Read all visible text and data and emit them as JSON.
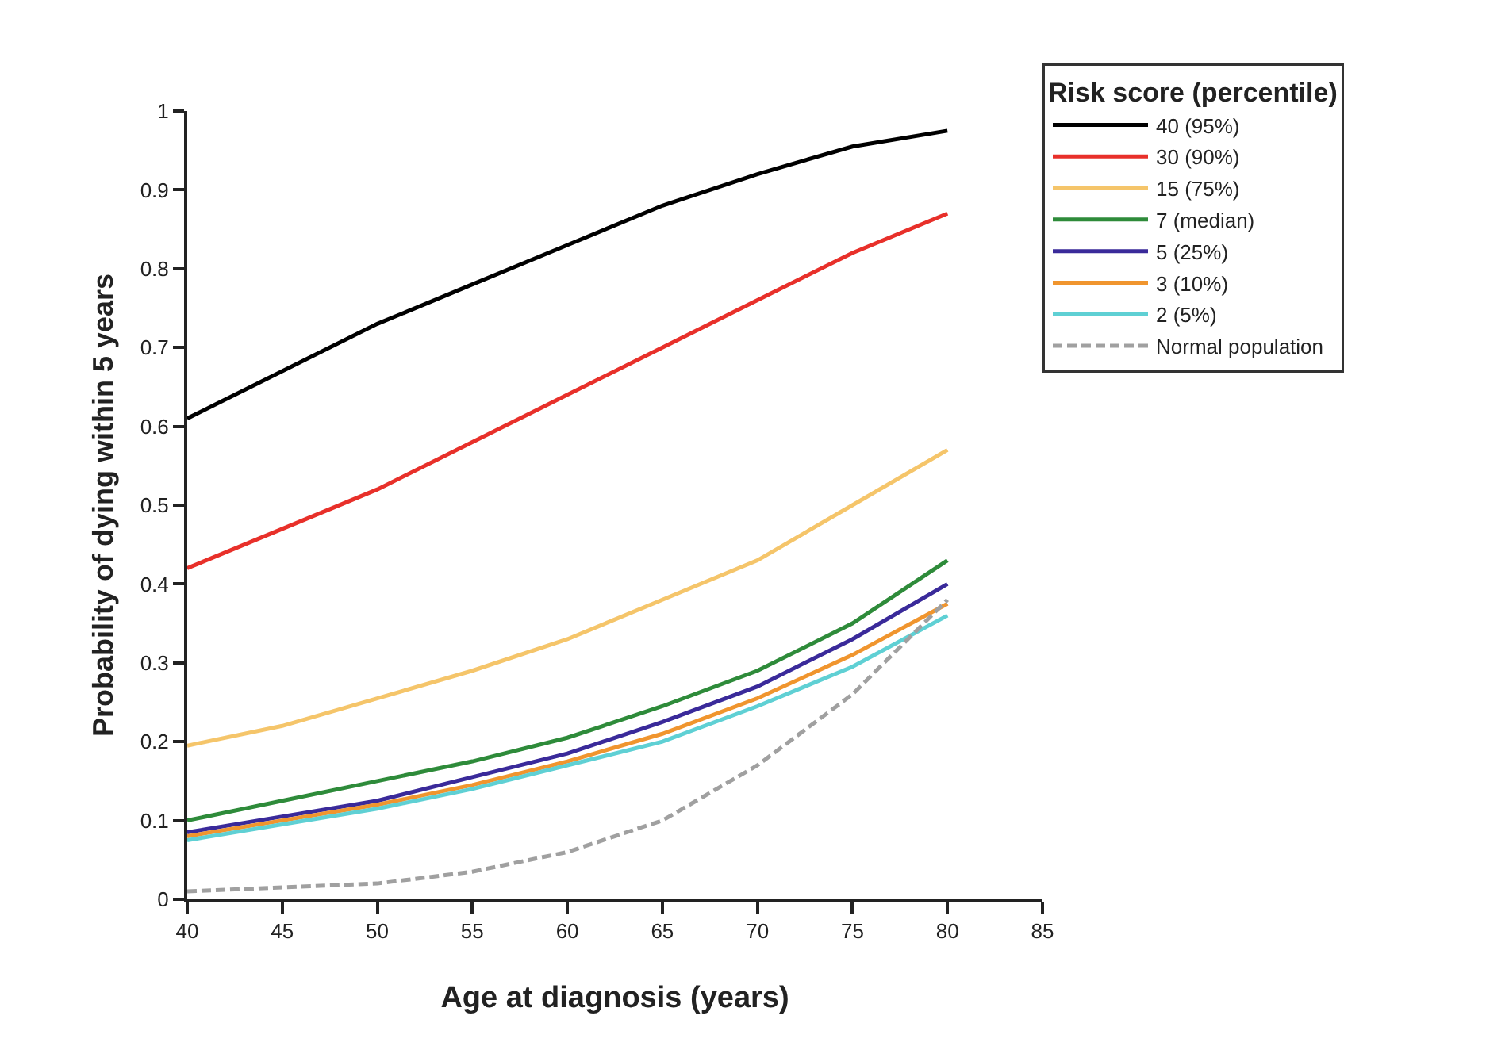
{
  "chart_data": {
    "type": "line",
    "xlabel": "Age at diagnosis (years)",
    "ylabel": "Probability of dying within 5 years",
    "legend_title": "Risk score (percentile)",
    "legend": "top right",
    "grid": false,
    "marker": "none",
    "line_style": "solid",
    "x": [
      40,
      45,
      50,
      55,
      60,
      65,
      70,
      75,
      80
    ],
    "xlim": [
      40,
      85
    ],
    "xticks": [
      40,
      45,
      50,
      55,
      60,
      65,
      70,
      75,
      80,
      85
    ],
    "ylim": [
      0,
      1
    ],
    "yticks": [
      0,
      0.1,
      0.2,
      0.3,
      0.4,
      0.5,
      0.6,
      0.7,
      0.8,
      0.9,
      1
    ],
    "series": [
      {
        "name": "40 (95%)",
        "color": "#000000",
        "values": [
          0.61,
          0.67,
          0.73,
          0.78,
          0.83,
          0.88,
          0.92,
          0.955,
          0.975
        ]
      },
      {
        "name": "30 (90%)",
        "color": "#e8302a",
        "values": [
          0.42,
          0.47,
          0.52,
          0.58,
          0.64,
          0.7,
          0.76,
          0.82,
          0.87
        ]
      },
      {
        "name": "15 (75%)",
        "color": "#f5c56a",
        "values": [
          0.195,
          0.22,
          0.255,
          0.29,
          0.33,
          0.38,
          0.43,
          0.5,
          0.57
        ]
      },
      {
        "name": "7 (median)",
        "color": "#2e8b3a",
        "values": [
          0.1,
          0.125,
          0.15,
          0.175,
          0.205,
          0.245,
          0.29,
          0.35,
          0.43
        ]
      },
      {
        "name": "5 (25%)",
        "color": "#3a2a9a",
        "values": [
          0.085,
          0.105,
          0.125,
          0.155,
          0.185,
          0.225,
          0.27,
          0.33,
          0.4
        ]
      },
      {
        "name": "3 (10%)",
        "color": "#f0952e",
        "values": [
          0.08,
          0.1,
          0.12,
          0.145,
          0.175,
          0.21,
          0.255,
          0.31,
          0.375
        ]
      },
      {
        "name": "2 (5%)",
        "color": "#5fd0d4",
        "values": [
          0.075,
          0.095,
          0.115,
          0.14,
          0.17,
          0.2,
          0.245,
          0.295,
          0.36
        ]
      },
      {
        "name": "Normal population",
        "color": "#a0a0a0",
        "line_style": "dashed",
        "values": [
          0.01,
          0.015,
          0.02,
          0.035,
          0.06,
          0.1,
          0.17,
          0.26,
          0.38
        ]
      }
    ]
  }
}
